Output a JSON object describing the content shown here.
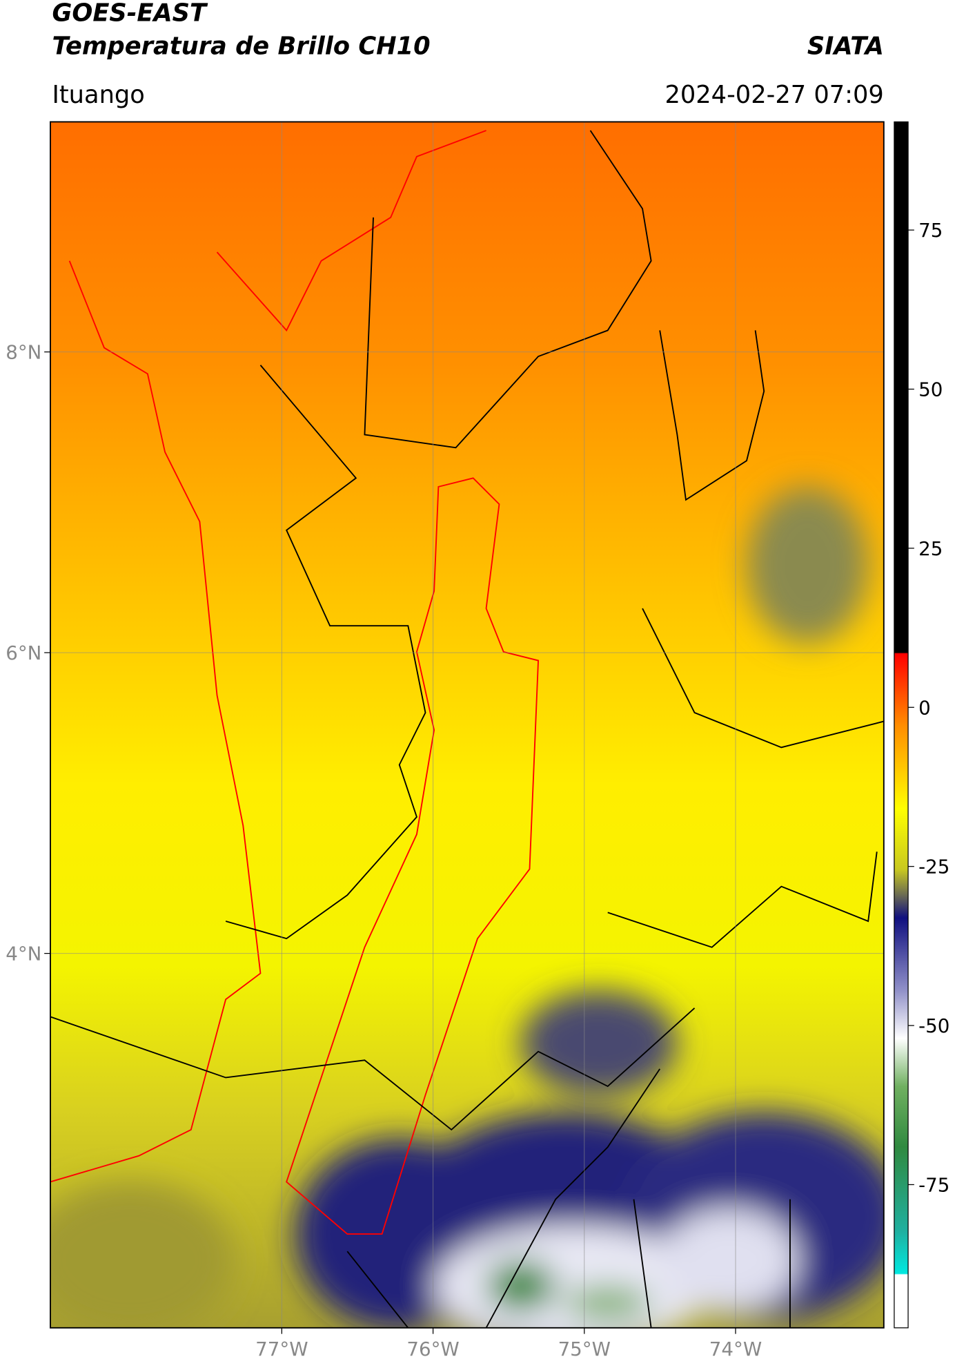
{
  "header": {
    "title_line1": "GOES-EAST",
    "title_line2": "Temperatura de Brillo CH10",
    "source": "SIATA",
    "region": "Ituango",
    "datetime": "2024-02-27 07:09"
  },
  "map": {
    "xlim": [
      -78.53,
      -73.02
    ],
    "ylim": [
      1.51,
      9.53
    ],
    "xticks": [
      {
        "value": -77,
        "label": "77°W"
      },
      {
        "value": -76,
        "label": "76°W"
      },
      {
        "value": -75,
        "label": "75°W"
      },
      {
        "value": -74,
        "label": "74°W"
      }
    ],
    "yticks": [
      {
        "value": 4,
        "label": "4°N"
      },
      {
        "value": 6,
        "label": "6°N"
      },
      {
        "value": 8,
        "label": "8°N"
      }
    ],
    "grid": true
  },
  "colorbar": {
    "lim": [
      -97.5,
      92
    ],
    "ticks": [
      75,
      50,
      25,
      0,
      -25,
      -50,
      -75
    ]
  }
}
